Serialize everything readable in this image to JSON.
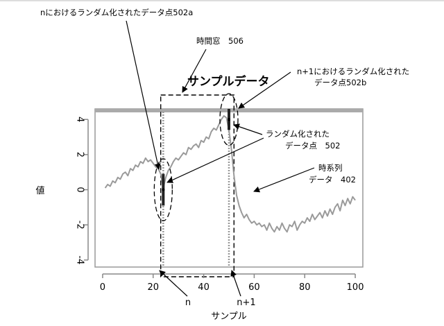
{
  "chart_data": {
    "type": "line",
    "title": "サンプルデータ",
    "xlabel": "サンプル",
    "ylabel": "値",
    "xlim": [
      -3,
      103
    ],
    "ylim": [
      -4.4,
      4.6
    ],
    "x_ticks": [
      0,
      20,
      40,
      60,
      80,
      100
    ],
    "y_ticks": [
      -4,
      -2,
      0,
      2,
      4
    ],
    "y_tick_labels": [
      "-4",
      "-2",
      "0",
      "2",
      "4"
    ],
    "grid": false,
    "series": [
      {
        "x": [
          1,
          2,
          3,
          4,
          5,
          6,
          7,
          8,
          9,
          10,
          11,
          12,
          13,
          14,
          15,
          16,
          17,
          18,
          19,
          20,
          21,
          22,
          23,
          24,
          25,
          26,
          27,
          28,
          29,
          30,
          31,
          32,
          33,
          34,
          35,
          36,
          37,
          38,
          39,
          40,
          41,
          42,
          43,
          44,
          45,
          46,
          47,
          48,
          49,
          50,
          51,
          52,
          53,
          54,
          55,
          56,
          57,
          58,
          59,
          60,
          61,
          62,
          63,
          64,
          65,
          66,
          67,
          68,
          69,
          70,
          71,
          72,
          73,
          74,
          75,
          76,
          77,
          78,
          79,
          80,
          81,
          82,
          83,
          84,
          85,
          86,
          87,
          88,
          89,
          90,
          91,
          92,
          93,
          94,
          95,
          96,
          97,
          98,
          99,
          100
        ],
        "values": [
          0.1,
          0.3,
          0.2,
          0.5,
          0.4,
          0.7,
          0.6,
          0.9,
          1.0,
          0.8,
          1.2,
          1.1,
          1.4,
          1.3,
          1.6,
          1.5,
          1.8,
          1.6,
          1.7,
          1.5,
          1.3,
          1.2,
          0.9,
          0.1,
          0.7,
          1.1,
          1.3,
          1.6,
          1.8,
          1.7,
          1.9,
          2.1,
          2.0,
          2.4,
          2.3,
          2.5,
          2.6,
          2.4,
          2.8,
          2.7,
          3.0,
          2.9,
          3.3,
          3.5,
          3.4,
          3.7,
          4.0,
          4.2,
          4.1,
          3.4,
          2.3,
          0.8,
          -0.3,
          -0.9,
          -1.3,
          -1.6,
          -1.4,
          -1.7,
          -1.9,
          -1.8,
          -2.0,
          -1.9,
          -2.1,
          -2.0,
          -2.3,
          -1.9,
          -2.2,
          -2.4,
          -2.1,
          -2.3,
          -1.9,
          -2.2,
          -2.4,
          -2.0,
          -2.1,
          -1.8,
          -2.3,
          -2.0,
          -1.8,
          -1.9,
          -1.6,
          -1.8,
          -1.4,
          -1.7,
          -1.5,
          -1.3,
          -1.6,
          -1.2,
          -1.5,
          -1.1,
          -1.4,
          -1.0,
          -0.8,
          -1.2,
          -0.6,
          -0.9,
          -0.5,
          -0.8,
          -0.4,
          -0.6
        ]
      }
    ],
    "time_window": {
      "start": 23,
      "end": 52
    },
    "sample_lines": [
      {
        "x": 24,
        "label": "n"
      },
      {
        "x": 50,
        "label": "n+1"
      }
    ],
    "random_points": [
      {
        "x": 24,
        "y_min": -0.9,
        "y_max": 0.9
      },
      {
        "x": 50,
        "y_min": 3.4,
        "y_max": 4.6
      }
    ],
    "annotations": [
      {
        "id": "pt-502a",
        "text": "nにおけるランダム化されたデータ点502a"
      },
      {
        "id": "window-506",
        "text": "時間窓　506"
      },
      {
        "id": "pt-502b-1",
        "text": "n+1におけるランダム化された"
      },
      {
        "id": "pt-502b-2",
        "text": "データ点502b"
      },
      {
        "id": "pts-502-1",
        "text": "ランダム化された"
      },
      {
        "id": "pts-502-2",
        "text": "データ点　502"
      },
      {
        "id": "ts-402-1",
        "text": "時系列"
      },
      {
        "id": "ts-402-2",
        "text": "データ　402"
      }
    ]
  }
}
